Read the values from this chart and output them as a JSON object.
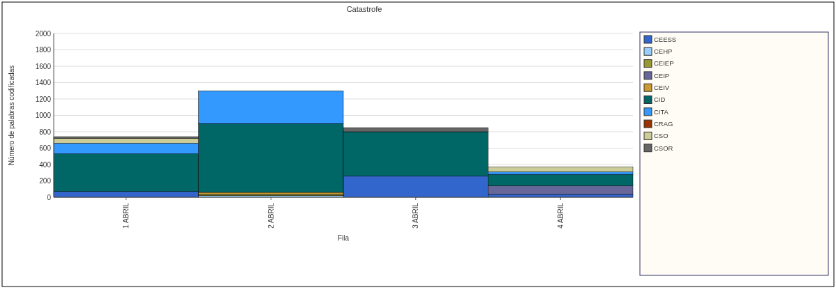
{
  "chart_data": {
    "type": "bar",
    "title": "Catastrofe",
    "xlabel": "Fila",
    "ylabel": "Número de palabras codificadas",
    "categories": [
      "1 ABRIL",
      "2 ABRIL",
      "3 ABRIL",
      "4 ABRIL"
    ],
    "stacked": true,
    "ylim": [
      0,
      2000
    ],
    "yticks": [
      0,
      200,
      400,
      600,
      800,
      1000,
      1200,
      1400,
      1600,
      1800,
      2000
    ],
    "grid": "y",
    "legend": "right",
    "series": [
      {
        "name": "CEESS",
        "color": "#3366cc",
        "values": [
          70,
          0,
          260,
          40
        ]
      },
      {
        "name": "CEHP",
        "color": "#99ccff",
        "values": [
          0,
          20,
          0,
          0
        ]
      },
      {
        "name": "CEIEP",
        "color": "#999933",
        "values": [
          0,
          20,
          0,
          0
        ]
      },
      {
        "name": "CEIP",
        "color": "#666699",
        "values": [
          0,
          0,
          0,
          100
        ]
      },
      {
        "name": "CEIV",
        "color": "#cc9933",
        "values": [
          0,
          20,
          0,
          0
        ]
      },
      {
        "name": "CID",
        "color": "#006666",
        "values": [
          460,
          840,
          540,
          140
        ]
      },
      {
        "name": "CITA",
        "color": "#3399ff",
        "values": [
          130,
          400,
          0,
          30
        ]
      },
      {
        "name": "CRAG",
        "color": "#993300",
        "values": [
          0,
          0,
          0,
          0
        ]
      },
      {
        "name": "CSO",
        "color": "#cccc99",
        "values": [
          60,
          0,
          0,
          60
        ]
      },
      {
        "name": "CSOR",
        "color": "#666666",
        "values": [
          20,
          0,
          50,
          0
        ]
      }
    ]
  }
}
